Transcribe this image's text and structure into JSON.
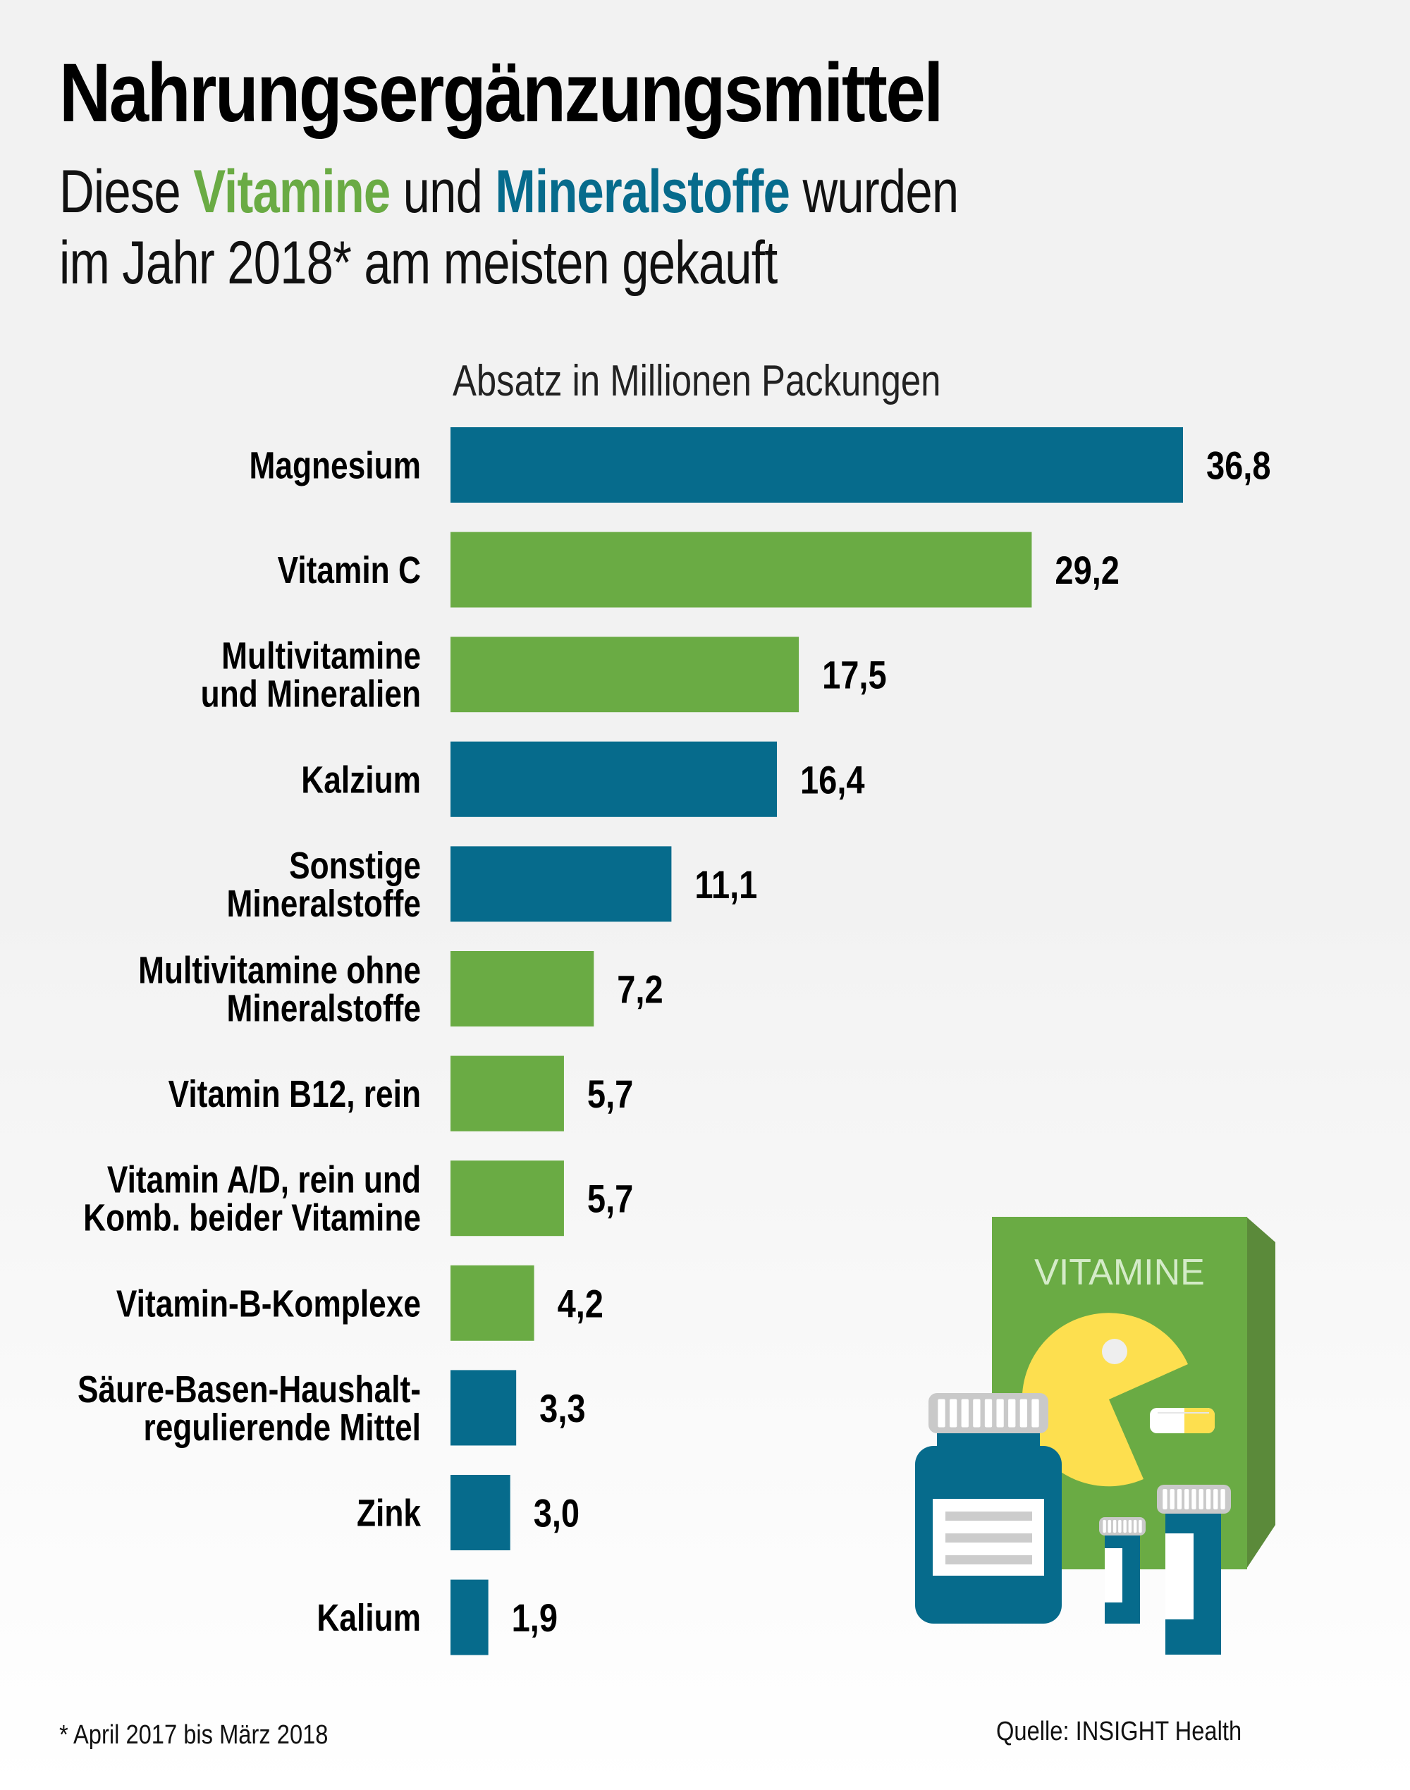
{
  "title": "Nahrungsergänzungsmittel",
  "subtitle": {
    "line1": [
      {
        "text": "Diese ",
        "style": "normal"
      },
      {
        "text": "Vitamine",
        "style": "vitamin"
      },
      {
        "text": " und ",
        "style": "normal"
      },
      {
        "text": "Mineralstoffe",
        "style": "mineral"
      },
      {
        "text": " wurden",
        "style": "normal"
      }
    ],
    "line2": "im Jahr 2018* am meisten gekauft"
  },
  "colors": {
    "vitamin": "#6aab44",
    "mineral": "#066b8c",
    "box_side": "#5b8a3a",
    "pacman": "#fddf4f",
    "cap": "#c9c9c9",
    "label_line": "#cccccc"
  },
  "illustration": {
    "box_label": "VITAMINE",
    "icons": [
      "vitamin-box-icon",
      "pacman-icon",
      "capsule-icon",
      "pill-bottle-icon",
      "small-bottle-icon",
      "medium-bottle-icon"
    ]
  },
  "footnote": "* April 2017 bis März 2018",
  "source": "Quelle: INSIGHT Health",
  "chart_data": {
    "type": "bar",
    "orientation": "horizontal",
    "title": "Nahrungsergänzungsmittel",
    "subtitle": "Diese Vitamine und Mineralstoffe wurden im Jahr 2018* am meisten gekauft",
    "xlabel": "Absatz in Millionen Packungen",
    "ylabel": "",
    "xlim": [
      0,
      36.8
    ],
    "grid": false,
    "legend": "inline-subtitle",
    "categories": [
      [
        "Magnesium"
      ],
      [
        "Vitamin C"
      ],
      [
        "Multivitamine",
        "und Mineralien"
      ],
      [
        "Kalzium"
      ],
      [
        "Sonstige",
        "Mineralstoffe"
      ],
      [
        "Multivitamine ohne",
        "Mineralstoffe"
      ],
      [
        "Vitamin B12, rein"
      ],
      [
        "Vitamin A/D, rein und",
        "Komb. beider Vitamine"
      ],
      [
        "Vitamin-B-Komplexe"
      ],
      [
        "Säure-Basen-Haushalt-",
        "regulierende Mittel"
      ],
      [
        "Zink"
      ],
      [
        "Kalium"
      ]
    ],
    "values": [
      36.8,
      29.2,
      17.5,
      16.4,
      11.1,
      7.2,
      5.7,
      5.7,
      4.2,
      3.3,
      3.0,
      1.9
    ],
    "value_labels": [
      "36,8",
      "29,2",
      "17,5",
      "16,4",
      "11,1",
      "7,2",
      "5,7",
      "5,7",
      "4,2",
      "3,3",
      "3,0",
      "1,9"
    ],
    "groups": [
      "mineral",
      "vitamin",
      "vitamin",
      "mineral",
      "mineral",
      "vitamin",
      "vitamin",
      "vitamin",
      "vitamin",
      "mineral",
      "mineral",
      "mineral"
    ],
    "series": [
      {
        "name": "Vitamine",
        "color": "#6aab44"
      },
      {
        "name": "Mineralstoffe",
        "color": "#066b8c"
      }
    ]
  }
}
